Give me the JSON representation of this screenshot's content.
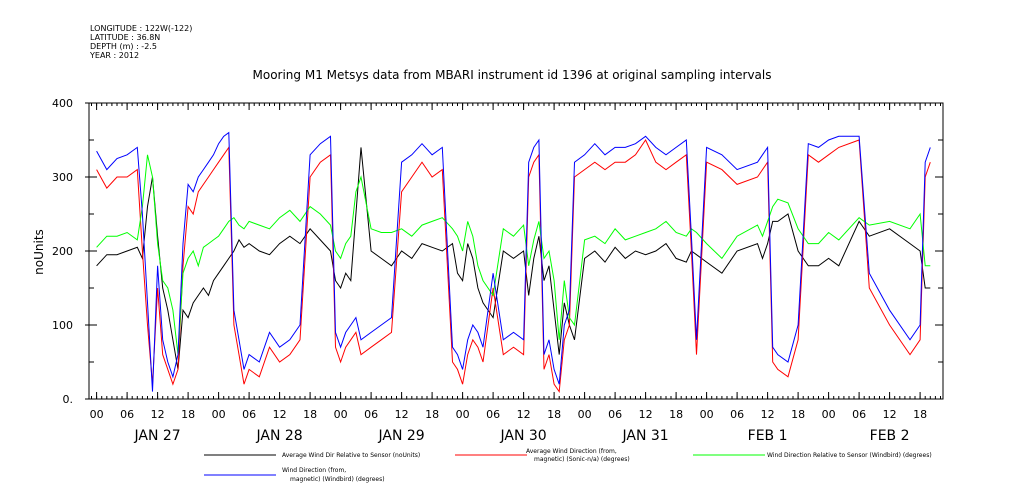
{
  "header": {
    "meta_lines": [
      "LONGITUDE : 122W(-122)",
      "LATITUDE : 36.8N",
      "DEPTH (m) : -2.5",
      "YEAR : 2012"
    ],
    "title": "Mooring M1 Metsys data from MBARI instrument id 1396 at original sampling intervals"
  },
  "legend": [
    {
      "lines": [
        "Average Wind Dir Relative to Sensor (noUnits)"
      ],
      "color": "#000000"
    },
    {
      "lines": [
        "Average Wind Direction (from,",
        "magnetic) (Sonic-n/a) (degrees)"
      ],
      "color": "#ff0000"
    },
    {
      "lines": [
        "Wind Direction Relative to Sensor (Windbird) (degrees)"
      ],
      "color": "#00ff00"
    },
    {
      "lines": [
        "Wind Direction (from,",
        "magnetic) (Windbird) (degrees)"
      ],
      "color": "#0000ff"
    }
  ],
  "chart_data": {
    "type": "line",
    "title": "Mooring M1 Metsys data from MBARI instrument id 1396 at original sampling intervals",
    "ylabel": "noUnits",
    "xlabel": "",
    "ylim": [
      0,
      400
    ],
    "y_ticks": [
      0,
      100,
      200,
      300,
      400
    ],
    "y_tick_labels": [
      "0.",
      "100",
      "200",
      "300",
      "400"
    ],
    "x_unit": "hours since 2012-01-26 00:00",
    "xlim": [
      -1.5,
      166.5
    ],
    "x_tick_hours": [
      0,
      6,
      12,
      18,
      24,
      30,
      36,
      42,
      48,
      54,
      60,
      66,
      72,
      78,
      84,
      90,
      96,
      102,
      108,
      114,
      120,
      126,
      132,
      138,
      144,
      150,
      156,
      162
    ],
    "x_tick_labels": [
      "00",
      "06",
      "12",
      "18",
      "00",
      "06",
      "12",
      "18",
      "00",
      "06",
      "12",
      "18",
      "00",
      "06",
      "12",
      "18",
      "00",
      "06",
      "12",
      "18",
      "00",
      "06",
      "12",
      "18",
      "00",
      "06",
      "12",
      "18"
    ],
    "day_labels": [
      {
        "label": "JAN 27",
        "hour": 12
      },
      {
        "label": "JAN 28",
        "hour": 36
      },
      {
        "label": "JAN 29",
        "hour": 60
      },
      {
        "label": "JAN 30",
        "hour": 84
      },
      {
        "label": "JAN 31",
        "hour": 108
      },
      {
        "label": "FEB  1",
        "hour": 132
      },
      {
        "label": "FEB  2",
        "hour": 156
      }
    ],
    "series": [
      {
        "name": "Average Wind Dir Relative to Sensor (noUnits)",
        "color": "#000000",
        "x": [
          0,
          2,
          4,
          6,
          8,
          9,
          10,
          11,
          12,
          13,
          14,
          15,
          16,
          17,
          18,
          19,
          20,
          21,
          22,
          23,
          24,
          25,
          26,
          27,
          28,
          29,
          30,
          32,
          34,
          36,
          38,
          40,
          42,
          44,
          46,
          47,
          48,
          49,
          50,
          51,
          52,
          54,
          56,
          58,
          60,
          62,
          64,
          66,
          68,
          70,
          71,
          72,
          73,
          74,
          75,
          76,
          78,
          80,
          82,
          84,
          85,
          86,
          87,
          88,
          89,
          90,
          91,
          92,
          93,
          94,
          96,
          98,
          100,
          102,
          104,
          106,
          108,
          110,
          112,
          114,
          116,
          117,
          118,
          120,
          123,
          126,
          130,
          131,
          132,
          133,
          134,
          136,
          138,
          140,
          142,
          144,
          146,
          150,
          152,
          156,
          160,
          162,
          163,
          164
        ],
        "y": [
          180,
          195,
          195,
          200,
          205,
          190,
          260,
          300,
          220,
          150,
          120,
          80,
          40,
          120,
          110,
          130,
          140,
          150,
          140,
          160,
          170,
          180,
          190,
          200,
          215,
          205,
          210,
          200,
          195,
          210,
          220,
          210,
          230,
          215,
          200,
          160,
          150,
          170,
          160,
          250,
          340,
          200,
          190,
          180,
          200,
          190,
          210,
          205,
          200,
          210,
          170,
          160,
          210,
          190,
          150,
          130,
          110,
          200,
          190,
          200,
          140,
          190,
          220,
          160,
          180,
          120,
          60,
          130,
          100,
          80,
          190,
          200,
          185,
          205,
          190,
          200,
          195,
          200,
          210,
          190,
          185,
          200,
          195,
          185,
          170,
          200,
          210,
          190,
          210,
          240,
          240,
          250,
          200,
          180,
          180,
          190,
          180,
          240,
          220,
          230,
          210,
          200,
          150,
          150
        ]
      },
      {
        "name": "Average Wind Direction (from, magnetic) (Sonic-n/a) (degrees)",
        "color": "#ff0000",
        "x": [
          0,
          2,
          4,
          6,
          8,
          9,
          10,
          11,
          12,
          13,
          14,
          15,
          16,
          17,
          18,
          19,
          20,
          21,
          22,
          23,
          24,
          25,
          26,
          27,
          28,
          29,
          30,
          32,
          34,
          36,
          38,
          40,
          42,
          44,
          46,
          47,
          48,
          49,
          50,
          51,
          52,
          54,
          56,
          58,
          60,
          62,
          64,
          66,
          68,
          70,
          71,
          72,
          73,
          74,
          75,
          76,
          78,
          80,
          82,
          84,
          85,
          86,
          87,
          88,
          89,
          90,
          91,
          92,
          93,
          94,
          96,
          98,
          100,
          102,
          104,
          106,
          108,
          110,
          112,
          114,
          116,
          117,
          118,
          120,
          123,
          126,
          130,
          131,
          132,
          133,
          134,
          136,
          138,
          140,
          142,
          144,
          146,
          150,
          152,
          156,
          160,
          162,
          163,
          164
        ],
        "y": [
          310,
          285,
          300,
          300,
          310,
          200,
          100,
          20,
          150,
          60,
          40,
          20,
          40,
          180,
          260,
          250,
          280,
          290,
          300,
          310,
          320,
          330,
          340,
          100,
          60,
          20,
          40,
          30,
          70,
          50,
          60,
          80,
          300,
          320,
          330,
          70,
          50,
          70,
          80,
          90,
          60,
          70,
          80,
          90,
          280,
          300,
          320,
          300,
          310,
          50,
          40,
          20,
          60,
          80,
          70,
          50,
          150,
          60,
          70,
          60,
          300,
          320,
          330,
          40,
          60,
          20,
          10,
          80,
          100,
          300,
          310,
          320,
          310,
          320,
          320,
          330,
          350,
          320,
          310,
          320,
          330,
          200,
          60,
          320,
          310,
          290,
          300,
          310,
          320,
          50,
          40,
          30,
          80,
          330,
          320,
          330,
          340,
          350,
          150,
          100,
          60,
          80,
          300,
          320
        ]
      },
      {
        "name": "Wind Direction Relative to Sensor (Windbird) (degrees)",
        "color": "#00ff00",
        "x": [
          0,
          2,
          4,
          6,
          8,
          9,
          10,
          11,
          12,
          13,
          14,
          15,
          16,
          17,
          18,
          19,
          20,
          21,
          22,
          23,
          24,
          25,
          26,
          27,
          28,
          29,
          30,
          32,
          34,
          36,
          38,
          40,
          42,
          44,
          46,
          47,
          48,
          49,
          50,
          51,
          52,
          54,
          56,
          58,
          60,
          62,
          64,
          66,
          68,
          70,
          71,
          72,
          73,
          74,
          75,
          76,
          78,
          80,
          82,
          84,
          85,
          86,
          87,
          88,
          89,
          90,
          91,
          92,
          93,
          94,
          96,
          98,
          100,
          102,
          104,
          106,
          108,
          110,
          112,
          114,
          116,
          117,
          118,
          120,
          123,
          126,
          130,
          131,
          132,
          133,
          134,
          136,
          138,
          140,
          142,
          144,
          146,
          150,
          152,
          156,
          160,
          162,
          163,
          164
        ],
        "y": [
          205,
          220,
          220,
          225,
          215,
          260,
          330,
          300,
          210,
          160,
          150,
          120,
          60,
          170,
          190,
          200,
          180,
          205,
          210,
          215,
          220,
          230,
          240,
          245,
          235,
          230,
          240,
          235,
          230,
          245,
          255,
          240,
          260,
          250,
          235,
          200,
          190,
          210,
          220,
          280,
          300,
          230,
          225,
          225,
          230,
          220,
          235,
          240,
          245,
          230,
          220,
          200,
          240,
          220,
          180,
          160,
          140,
          230,
          220,
          235,
          180,
          215,
          240,
          190,
          200,
          160,
          80,
          160,
          110,
          100,
          215,
          220,
          210,
          230,
          215,
          220,
          225,
          230,
          240,
          225,
          220,
          230,
          225,
          210,
          190,
          220,
          235,
          220,
          240,
          260,
          270,
          265,
          230,
          210,
          210,
          225,
          215,
          245,
          235,
          240,
          230,
          250,
          180,
          180
        ]
      },
      {
        "name": "Wind Direction (from, magnetic) (Windbird) (degrees)",
        "color": "#0000ff",
        "x": [
          0,
          2,
          4,
          6,
          8,
          9,
          10,
          11,
          12,
          13,
          14,
          15,
          16,
          17,
          18,
          19,
          20,
          21,
          22,
          23,
          24,
          25,
          26,
          27,
          28,
          29,
          30,
          32,
          34,
          36,
          38,
          40,
          42,
          44,
          46,
          47,
          48,
          49,
          50,
          51,
          52,
          54,
          56,
          58,
          60,
          62,
          64,
          66,
          68,
          70,
          71,
          72,
          73,
          74,
          75,
          76,
          78,
          80,
          82,
          84,
          85,
          86,
          87,
          88,
          89,
          90,
          91,
          92,
          93,
          94,
          96,
          98,
          100,
          102,
          104,
          106,
          108,
          110,
          112,
          114,
          116,
          117,
          118,
          120,
          123,
          126,
          130,
          131,
          132,
          133,
          134,
          136,
          138,
          140,
          142,
          144,
          146,
          150,
          152,
          156,
          160,
          162,
          163,
          164
        ],
        "y": [
          335,
          310,
          325,
          330,
          340,
          250,
          130,
          10,
          180,
          80,
          50,
          30,
          60,
          210,
          290,
          280,
          300,
          310,
          320,
          330,
          345,
          355,
          360,
          120,
          80,
          40,
          60,
          50,
          90,
          70,
          80,
          100,
          330,
          345,
          355,
          90,
          70,
          90,
          100,
          110,
          80,
          90,
          100,
          110,
          320,
          330,
          345,
          330,
          340,
          70,
          60,
          40,
          80,
          100,
          90,
          70,
          170,
          80,
          90,
          80,
          320,
          340,
          350,
          60,
          80,
          40,
          20,
          100,
          120,
          320,
          330,
          345,
          330,
          340,
          340,
          345,
          355,
          340,
          330,
          340,
          350,
          220,
          80,
          340,
          330,
          310,
          320,
          330,
          340,
          70,
          60,
          50,
          100,
          345,
          340,
          350,
          355,
          355,
          170,
          120,
          80,
          100,
          320,
          340
        ]
      }
    ]
  }
}
